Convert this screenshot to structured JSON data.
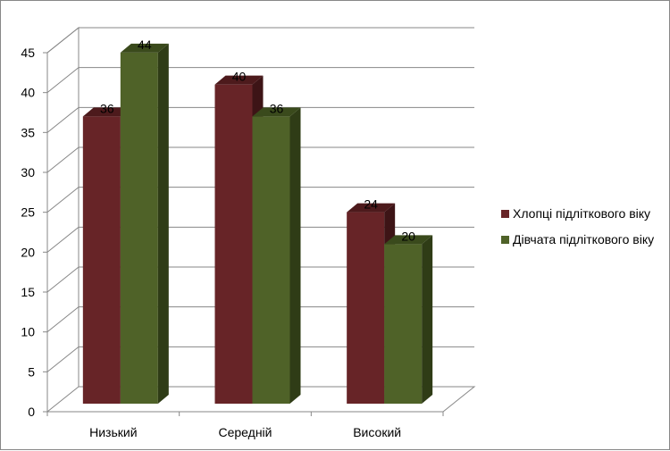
{
  "chart_data": {
    "type": "bar",
    "style": "3d-clustered-column",
    "categories": [
      "Низький",
      "Середній",
      "Високий"
    ],
    "series": [
      {
        "name": "Хлопці підліткового віку",
        "values": [
          36,
          40,
          24
        ],
        "color": "#672427",
        "top_color": "#4d1a1c",
        "side_color": "#3d1416"
      },
      {
        "name": "Дівчата підліткового віку",
        "values": [
          44,
          36,
          20
        ],
        "color": "#4f6228",
        "top_color": "#3a4a1c",
        "side_color": "#2f3c16"
      }
    ],
    "ylim": [
      0,
      45
    ],
    "yticks": [
      0,
      5,
      10,
      15,
      20,
      25,
      30,
      35,
      40,
      45
    ],
    "title": "",
    "xlabel": "",
    "ylabel": "",
    "grid": true,
    "data_labels": true,
    "legend_position": "right"
  }
}
